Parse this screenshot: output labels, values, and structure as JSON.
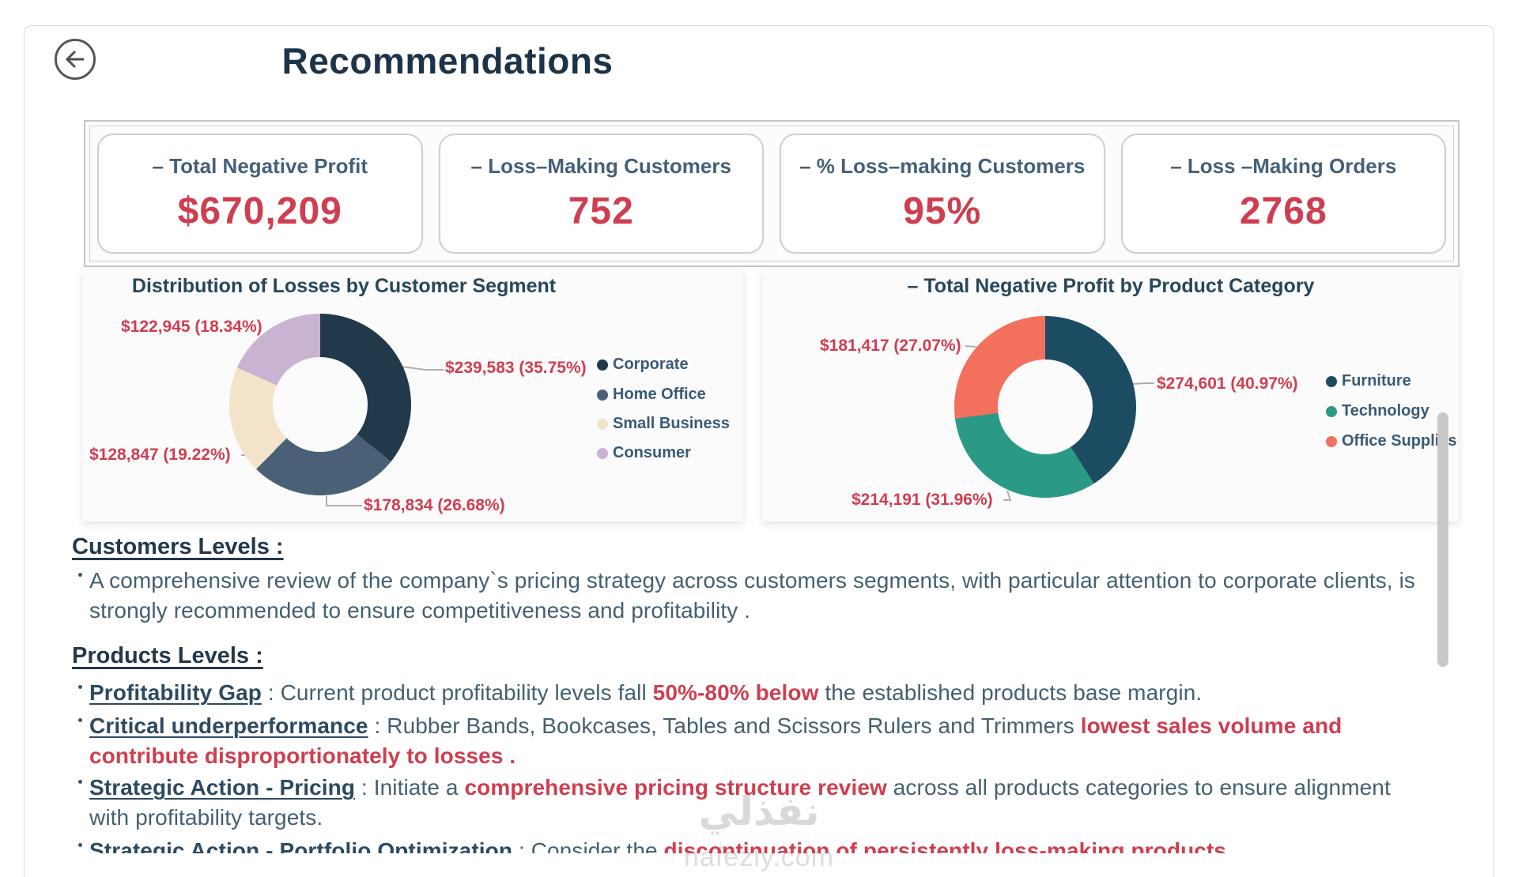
{
  "page": {
    "title": "Recommendations"
  },
  "colors": {
    "accent_red": "#cf3e50",
    "heading_navy": "#1d3347",
    "body_slate": "#44606f",
    "lead_navy": "#2d4a61",
    "legend_slate": "#3a5a76",
    "kpi_label": "#44607a"
  },
  "kpis": [
    {
      "label": "– Total Negative Profit",
      "value": "$670,209"
    },
    {
      "label": "– Loss–Making Customers",
      "value": "752"
    },
    {
      "label": "– % Loss–making Customers",
      "value": "95%"
    },
    {
      "label": "– Loss –Making Orders",
      "value": "2768"
    }
  ],
  "chart_data": [
    {
      "type": "donut",
      "title": "Distribution of Losses by Customer Segment",
      "legend_position": "right",
      "label_color": "#cf3e50",
      "slices": [
        {
          "name": "Corporate",
          "value": 239583,
          "pct": 35.75,
          "label": "$239,583 (35.75%)",
          "color": "#20394b"
        },
        {
          "name": "Home Office",
          "value": 178834,
          "pct": 26.68,
          "label": "$178,834 (26.68%)",
          "color": "#4a6077"
        },
        {
          "name": "Small Business",
          "value": 128847,
          "pct": 19.22,
          "label": "$128,847 (19.22%)",
          "color": "#f3e3cb"
        },
        {
          "name": "Consumer",
          "value": 122945,
          "pct": 18.34,
          "label": "$122,945 (18.34%)",
          "color": "#c9b3d2"
        }
      ]
    },
    {
      "type": "donut",
      "title": "– Total Negative Profit by Product Category",
      "legend_position": "right",
      "label_color": "#cf3e50",
      "slices": [
        {
          "name": "Furniture",
          "value": 274601,
          "pct": 40.97,
          "label": "$274,601 (40.97%)",
          "color": "#1c4c61"
        },
        {
          "name": "Technology",
          "value": 214191,
          "pct": 31.96,
          "label": "$214,191 (31.96%)",
          "color": "#2a9a87"
        },
        {
          "name": "Office Supplies",
          "value": 181417,
          "pct": 27.07,
          "label": "$181,417 (27.07%)",
          "color": "#f3705c"
        }
      ]
    }
  ],
  "sections": [
    {
      "heading": "Customers Levels :",
      "bullets": [
        {
          "runs": [
            {
              "style": "normal",
              "text": "A comprehensive review of the company`s pricing strategy across customers segments, with particular attention to corporate clients, is strongly recommended to ensure competitiveness and profitability ."
            }
          ]
        }
      ]
    },
    {
      "heading": "Products Levels :",
      "bullets": [
        {
          "runs": [
            {
              "style": "lead",
              "text": "Profitability Gap"
            },
            {
              "style": "normal",
              "text": " : Current product profitability levels fall "
            },
            {
              "style": "red",
              "text": "50%-80% below"
            },
            {
              "style": "normal",
              "text": " the established products base margin."
            }
          ]
        },
        {
          "runs": [
            {
              "style": "lead",
              "text": "Critical underperformance"
            },
            {
              "style": "normal",
              "text": " : Rubber Bands, Bookcases, Tables and Scissors Rulers and Trimmers "
            },
            {
              "style": "red",
              "text": "lowest sales volume and contribute disproportionately to losses ."
            }
          ]
        },
        {
          "runs": [
            {
              "style": "lead",
              "text": "Strategic Action - Pricing"
            },
            {
              "style": "normal",
              "text": " : Initiate a "
            },
            {
              "style": "red",
              "text": "comprehensive pricing structure review"
            },
            {
              "style": "normal",
              "text": " across all products categories to ensure alignment with profitability targets."
            }
          ]
        },
        {
          "runs": [
            {
              "style": "lead",
              "text": "Strategic Action - Portfolio Optimization"
            },
            {
              "style": "normal",
              "text": " : Consider the "
            },
            {
              "style": "red",
              "text": "discontinuation of persistently loss-making products ."
            }
          ]
        }
      ]
    }
  ],
  "watermark": {
    "logo_text": "نفذلي",
    "site": "nafezly.com"
  }
}
